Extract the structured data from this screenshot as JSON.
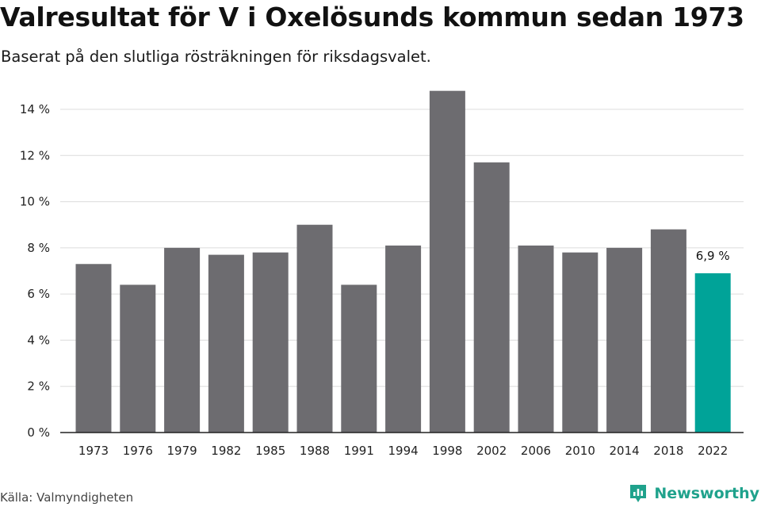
{
  "header": {
    "title": "Valresultat för V i Oxelösunds kommun sedan 1973",
    "subtitle": "Baserat på den slutliga rösträkningen för riksdagsvalet."
  },
  "footer": {
    "source": "Källa: Valmyndigheten",
    "brand": "Newsworthy",
    "brand_icon": "newsworthy-logo-icon",
    "brand_color": "#1fa28c"
  },
  "chart_data": {
    "type": "bar",
    "categories": [
      "1973",
      "1976",
      "1979",
      "1982",
      "1985",
      "1988",
      "1991",
      "1994",
      "1998",
      "2002",
      "2006",
      "2010",
      "2014",
      "2018",
      "2022"
    ],
    "values": [
      7.3,
      6.4,
      8.0,
      7.7,
      7.8,
      9.0,
      6.4,
      8.1,
      14.8,
      11.7,
      8.1,
      7.8,
      8.0,
      8.8,
      6.9
    ],
    "yticks": [
      "0 %",
      "2 %",
      "4 %",
      "6 %",
      "8 %",
      "10 %",
      "12 %",
      "14 %"
    ],
    "ylim": [
      0,
      14
    ],
    "grid": true,
    "bar_color": "#6d6c70",
    "highlight_color": "#00a398",
    "highlight_index": 14,
    "data_labels": [
      {
        "index": 14,
        "text": "6,9 %"
      }
    ]
  }
}
